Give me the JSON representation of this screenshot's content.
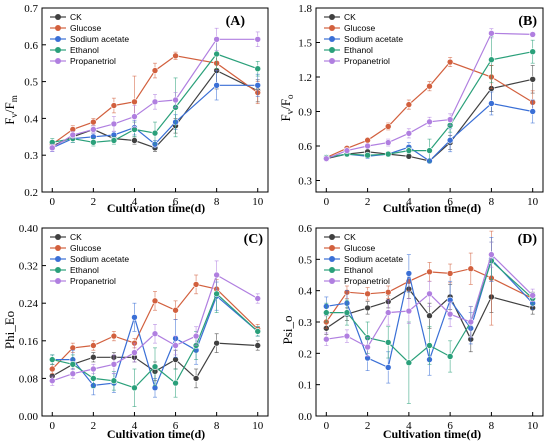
{
  "chart_data": [
    {
      "type": "line",
      "panel_label": "(A)",
      "ylabel": "Fv/Fm",
      "ylabel_main": "F",
      "ylabel_sub1": "v",
      "ylabel_slash": "/F",
      "ylabel_sub2": "m",
      "xlabel": "Cultivation time(d)",
      "ylim": [
        0.2,
        0.7
      ],
      "yticks": [
        0.2,
        0.3,
        0.4,
        0.5,
        0.6,
        0.7
      ],
      "ytick_labels": [
        "0.2",
        "0.3",
        "0.4",
        "0.5",
        "0.6",
        "0.7"
      ],
      "xlim": [
        -0.5,
        10.5
      ],
      "xticks": [
        0,
        2,
        4,
        6,
        8,
        10
      ],
      "xtick_labels": [
        "0",
        "2",
        "4",
        "6",
        "8",
        "10"
      ],
      "legend_position": "top-left",
      "x": [
        0,
        1,
        2,
        3,
        4,
        5,
        6,
        8,
        10
      ],
      "series": [
        {
          "name": "CK",
          "color": "#404040",
          "values": [
            0.325,
            0.35,
            0.37,
            0.345,
            0.34,
            0.32,
            0.38,
            0.53,
            0.475
          ],
          "err": [
            0.01,
            0.01,
            0.01,
            0.01,
            0.01,
            0.01,
            0.02,
            0.05,
            0.03
          ]
        },
        {
          "name": "Glucose",
          "color": "#d2603e",
          "values": [
            0.33,
            0.37,
            0.39,
            0.435,
            0.445,
            0.53,
            0.57,
            0.55,
            0.47
          ],
          "err": [
            0.01,
            0.01,
            0.01,
            0.02,
            0.07,
            0.02,
            0.01,
            0.02,
            0.03
          ]
        },
        {
          "name": "Sodium acetate",
          "color": "#3a6fd6",
          "values": [
            0.32,
            0.345,
            0.35,
            0.355,
            0.375,
            0.33,
            0.39,
            0.49,
            0.49
          ],
          "err": [
            0.01,
            0.01,
            0.01,
            0.01,
            0.02,
            0.01,
            0.02,
            0.04,
            0.03
          ]
        },
        {
          "name": "Ethanol",
          "color": "#2aa07a",
          "values": [
            0.335,
            0.345,
            0.335,
            0.34,
            0.37,
            0.36,
            0.43,
            0.575,
            0.535
          ],
          "err": [
            0.01,
            0.01,
            0.01,
            0.01,
            0.02,
            0.03,
            0.08,
            0.04,
            0.02
          ]
        },
        {
          "name": "Propanetriol",
          "color": "#b07fe0",
          "values": [
            0.32,
            0.355,
            0.37,
            0.385,
            0.405,
            0.445,
            0.45,
            0.615,
            0.615
          ],
          "err": [
            0.01,
            0.01,
            0.01,
            0.02,
            0.03,
            0.02,
            0.02,
            0.03,
            0.02
          ]
        }
      ]
    },
    {
      "type": "line",
      "panel_label": "(B)",
      "ylabel": "Fv/Fo",
      "ylabel_main": "F",
      "ylabel_sub1": "v",
      "ylabel_slash": "/F",
      "ylabel_sub2": "o",
      "xlabel": "Cultivation time(d)",
      "ylim": [
        0.2,
        1.8
      ],
      "yticks": [
        0.3,
        0.6,
        0.9,
        1.2,
        1.5,
        1.8
      ],
      "ytick_labels": [
        "0.3",
        "0.6",
        "0.9",
        "1.2",
        "1.5",
        "1.8"
      ],
      "xlim": [
        -0.5,
        10.5
      ],
      "xticks": [
        0,
        2,
        4,
        6,
        8,
        10
      ],
      "xtick_labels": [
        "0",
        "2",
        "4",
        "6",
        "8",
        "10"
      ],
      "legend_position": "top-left",
      "x": [
        0,
        1,
        2,
        3,
        4,
        5,
        6,
        8,
        10
      ],
      "series": [
        {
          "name": "CK",
          "color": "#404040",
          "values": [
            0.49,
            0.53,
            0.55,
            0.53,
            0.51,
            0.47,
            0.63,
            1.1,
            1.18
          ],
          "err": [
            0.02,
            0.02,
            0.02,
            0.02,
            0.02,
            0.02,
            0.06,
            0.2,
            0.12
          ]
        },
        {
          "name": "Glucose",
          "color": "#d2603e",
          "values": [
            0.5,
            0.58,
            0.65,
            0.77,
            0.96,
            1.12,
            1.33,
            1.2,
            0.98
          ],
          "err": [
            0.02,
            0.02,
            0.02,
            0.03,
            0.04,
            0.04,
            0.04,
            0.1,
            0.1
          ]
        },
        {
          "name": "Sodium acetate",
          "color": "#3a6fd6",
          "values": [
            0.5,
            0.53,
            0.51,
            0.53,
            0.59,
            0.47,
            0.65,
            0.97,
            0.9
          ],
          "err": [
            0.02,
            0.02,
            0.02,
            0.02,
            0.04,
            0.02,
            0.1,
            0.1,
            0.1
          ]
        },
        {
          "name": "Ethanol",
          "color": "#2aa07a",
          "values": [
            0.5,
            0.53,
            0.52,
            0.53,
            0.56,
            0.56,
            0.78,
            1.35,
            1.42
          ],
          "err": [
            0.02,
            0.02,
            0.02,
            0.02,
            0.03,
            0.1,
            0.06,
            0.2,
            0.1
          ]
        },
        {
          "name": "Propanetriol",
          "color": "#b07fe0",
          "values": [
            0.49,
            0.56,
            0.6,
            0.63,
            0.71,
            0.81,
            0.83,
            1.58,
            1.57
          ],
          "err": [
            0.02,
            0.02,
            0.02,
            0.03,
            0.04,
            0.04,
            0.05,
            0.04,
            0.02
          ]
        }
      ]
    },
    {
      "type": "line",
      "panel_label": "(C)",
      "ylabel": "Phi_Eo",
      "xlabel": "Cultivation time(d)",
      "ylim": [
        0.0,
        0.4
      ],
      "yticks": [
        0.0,
        0.08,
        0.16,
        0.24,
        0.32,
        0.4
      ],
      "ytick_labels": [
        "0.00",
        "0.08",
        "0.16",
        "0.24",
        "0.32",
        "0.40"
      ],
      "xlim": [
        -0.5,
        10.5
      ],
      "xticks": [
        0,
        2,
        4,
        6,
        8,
        10
      ],
      "xtick_labels": [
        "0",
        "2",
        "4",
        "6",
        "8",
        "10"
      ],
      "legend_position": "top-left",
      "x": [
        0,
        1,
        2,
        3,
        4,
        5,
        6,
        7,
        8,
        10
      ],
      "series": [
        {
          "name": "CK",
          "color": "#404040",
          "values": [
            0.085,
            0.11,
            0.125,
            0.125,
            0.125,
            0.095,
            0.12,
            0.08,
            0.155,
            0.15
          ],
          "err": [
            0.01,
            0.01,
            0.01,
            0.01,
            0.01,
            0.02,
            0.02,
            0.02,
            0.02,
            0.01
          ]
        },
        {
          "name": "Glucose",
          "color": "#d2603e",
          "values": [
            0.1,
            0.145,
            0.15,
            0.17,
            0.155,
            0.245,
            0.225,
            0.28,
            0.27,
            0.185
          ],
          "err": [
            0.01,
            0.01,
            0.01,
            0.01,
            0.01,
            0.02,
            0.02,
            0.02,
            0.02,
            0.01
          ]
        },
        {
          "name": "Sodium acetate",
          "color": "#3a6fd6",
          "values": [
            0.12,
            0.12,
            0.065,
            0.07,
            0.21,
            0.06,
            0.165,
            0.14,
            0.255,
            0.18
          ],
          "err": [
            0.01,
            0.02,
            0.02,
            0.02,
            0.03,
            0.02,
            0.04,
            0.03,
            0.03,
            0.01
          ]
        },
        {
          "name": "Ethanol",
          "color": "#2aa07a",
          "values": [
            0.12,
            0.11,
            0.08,
            0.075,
            0.06,
            0.105,
            0.07,
            0.15,
            0.26,
            0.18
          ],
          "err": [
            0.01,
            0.02,
            0.02,
            0.02,
            0.04,
            0.04,
            0.03,
            0.03,
            0.04,
            0.01
          ]
        },
        {
          "name": "Propanetriol",
          "color": "#b07fe0",
          "values": [
            0.075,
            0.09,
            0.1,
            0.11,
            0.135,
            0.175,
            0.15,
            0.17,
            0.3,
            0.25
          ],
          "err": [
            0.01,
            0.01,
            0.01,
            0.02,
            0.02,
            0.02,
            0.02,
            0.02,
            0.03,
            0.01
          ]
        }
      ]
    },
    {
      "type": "line",
      "panel_label": "(D)",
      "ylabel": "Psi_o",
      "xlabel": "Cultivation time(d)",
      "ylim": [
        0.0,
        0.6
      ],
      "yticks": [
        0.0,
        0.1,
        0.2,
        0.3,
        0.4,
        0.5,
        0.6
      ],
      "ytick_labels": [
        "0.0",
        "0.1",
        "0.2",
        "0.3",
        "0.4",
        "0.5",
        "0.6"
      ],
      "xlim": [
        -0.5,
        10.5
      ],
      "xticks": [
        0,
        2,
        4,
        6,
        8,
        10
      ],
      "xtick_labels": [
        "0",
        "2",
        "4",
        "6",
        "8",
        "10"
      ],
      "legend_position": "top-left",
      "x": [
        0,
        1,
        2,
        3,
        4,
        5,
        6,
        7,
        8,
        10
      ],
      "series": [
        {
          "name": "CK",
          "color": "#404040",
          "values": [
            0.28,
            0.325,
            0.345,
            0.365,
            0.405,
            0.32,
            0.38,
            0.245,
            0.38,
            0.345
          ],
          "err": [
            0.02,
            0.02,
            0.02,
            0.02,
            0.03,
            0.04,
            0.04,
            0.04,
            0.05,
            0.02
          ]
        },
        {
          "name": "Glucose",
          "color": "#d2603e",
          "values": [
            0.3,
            0.395,
            0.39,
            0.395,
            0.43,
            0.46,
            0.455,
            0.47,
            0.44,
            0.375
          ],
          "err": [
            0.02,
            0.02,
            0.02,
            0.02,
            0.03,
            0.03,
            0.03,
            0.05,
            0.15,
            0.02
          ]
        },
        {
          "name": "Sodium acetate",
          "color": "#3a6fd6",
          "values": [
            0.35,
            0.36,
            0.185,
            0.155,
            0.455,
            0.18,
            0.37,
            0.28,
            0.5,
            0.36
          ],
          "err": [
            0.03,
            0.04,
            0.04,
            0.05,
            0.06,
            0.05,
            0.06,
            0.05,
            0.07,
            0.02
          ]
        },
        {
          "name": "Ethanol",
          "color": "#2aa07a",
          "values": [
            0.33,
            0.33,
            0.25,
            0.235,
            0.17,
            0.225,
            0.19,
            0.3,
            0.495,
            0.375
          ],
          "err": [
            0.03,
            0.04,
            0.05,
            0.05,
            0.13,
            0.06,
            0.05,
            0.05,
            0.06,
            0.02
          ]
        },
        {
          "name": "Propanetriol",
          "color": "#b07fe0",
          "values": [
            0.245,
            0.255,
            0.22,
            0.33,
            0.335,
            0.39,
            0.325,
            0.3,
            0.515,
            0.385
          ],
          "err": [
            0.02,
            0.02,
            0.03,
            0.04,
            0.04,
            0.04,
            0.04,
            0.05,
            0.04,
            0.02
          ]
        }
      ]
    }
  ]
}
